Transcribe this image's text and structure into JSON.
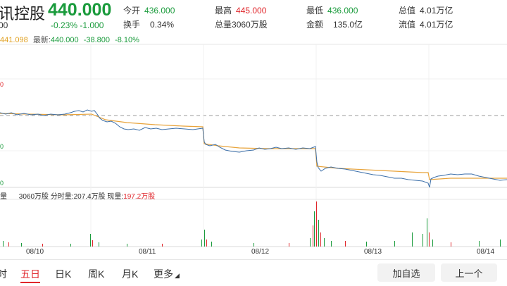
{
  "header": {
    "name": "讯控股",
    "price": "440.000",
    "change": "-0.23% -1.000",
    "sub": "00"
  },
  "stats": {
    "open_label": "今开",
    "open_value": "436.000",
    "turnover_label": "换手",
    "turnover_value": "0.34%",
    "high_label": "最高",
    "high_value": "445.000",
    "volume_label": "总量",
    "volume_value": "3060万股",
    "low_label": "最低",
    "low_value": "436.000",
    "amount_label": "金额",
    "amount_value": "135.0亿",
    "mktcap_label": "总值",
    "mktcap_value": "4.01万亿",
    "float_label": "流值",
    "float_value": "4.01万亿"
  },
  "legend": {
    "ma": "441.098",
    "latest_label": "最新:",
    "latest_value": "440.000",
    "change_value": "-38.800",
    "pct_value": "-8.10%"
  },
  "axis_labels": [
    "0",
    "0",
    "0"
  ],
  "volume_info": {
    "prefix": "量",
    "total": "3060万股",
    "period_label": "分时量:",
    "period_value": "207.4万股",
    "current_label": "现量:",
    "current_value": "197.2万股"
  },
  "chart_data": {
    "type": "line",
    "x": [
      "08/10",
      "08/11",
      "08/12",
      "08/13",
      "08/14"
    ],
    "series": [],
    "prev_close": 478.8
  },
  "dates": [
    "08/10",
    "08/11",
    "08/12",
    "08/13",
    "08/14"
  ],
  "tabs": [
    "时",
    "五日",
    "日K",
    "周K",
    "月K",
    "更多"
  ],
  "buttons": {
    "add_watch": "加自选",
    "prev": "上一个"
  },
  "colors": {
    "up": "#e0262b",
    "down": "#1a9b3c",
    "price_line": "#3b6ea8",
    "avg_line": "#e8a33a"
  }
}
